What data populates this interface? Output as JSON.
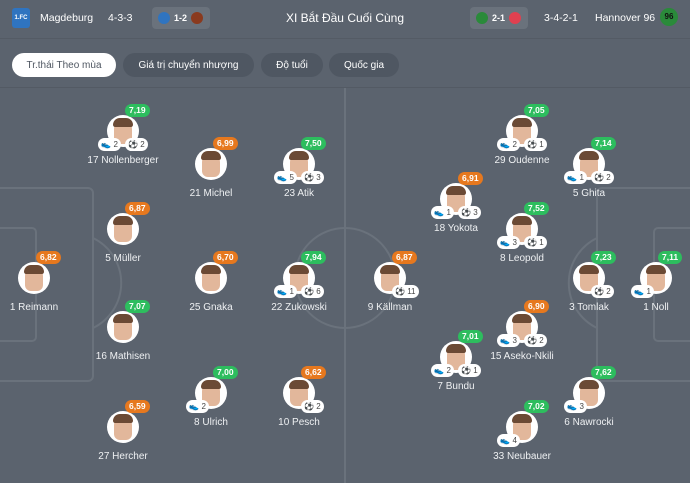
{
  "header": {
    "home_team": "Magdeburg",
    "home_formation": "4-3-3",
    "home_last_score": "1-2",
    "title": "XI Bắt Đầu Cuối Cùng",
    "away_last_score": "2-1",
    "away_formation": "3-4-2-1",
    "away_team": "Hannover 96",
    "home_crest_text": "1.FC",
    "away_crest_text": "96"
  },
  "tabs": [
    {
      "label": "Tr.thái Theo mùa",
      "active": true
    },
    {
      "label": "Giá trị chuyển nhượng"
    },
    {
      "label": "Độ tuổi"
    },
    {
      "label": "Quốc gia"
    }
  ],
  "colors": {
    "green": "#2dbd5e",
    "orange": "#e6781e",
    "background": "#5b636e"
  },
  "icons": {
    "assist": "boot-icon",
    "goal": "football-icon"
  },
  "players": [
    {
      "name": "17 Nollenberger",
      "rating": "7,19",
      "assists": "2",
      "goals": "2"
    },
    {
      "name": "21 Michel",
      "rating": "6,99"
    },
    {
      "name": "23 Atik",
      "rating": "7,50",
      "assists": "5",
      "goals": "3"
    },
    {
      "name": "5 Müller",
      "rating": "6,87"
    },
    {
      "name": "1 Reimann",
      "rating": "6,82"
    },
    {
      "name": "25 Gnaka",
      "rating": "6,70"
    },
    {
      "name": "22 Zukowski",
      "rating": "7,94",
      "assists": "1",
      "goals": "6"
    },
    {
      "name": "16 Mathisen",
      "rating": "7,07"
    },
    {
      "name": "8 Ulrich",
      "rating": "7,00",
      "assists": "2"
    },
    {
      "name": "10 Pesch",
      "rating": "6,62",
      "goals": "2"
    },
    {
      "name": "27 Hercher",
      "rating": "6,59"
    },
    {
      "name": "29 Oudenne",
      "rating": "7,05",
      "assists": "2",
      "goals": "1"
    },
    {
      "name": "5 Ghita",
      "rating": "7,14",
      "assists": "1",
      "goals": "2"
    },
    {
      "name": "18 Yokota",
      "rating": "6,91",
      "assists": "1",
      "goals": "3"
    },
    {
      "name": "8 Leopold",
      "rating": "7,52",
      "assists": "3",
      "goals": "1"
    },
    {
      "name": "9 Källman",
      "rating": "6,87",
      "goals": "11"
    },
    {
      "name": "3 Tomlak",
      "rating": "7,23",
      "goals": "2"
    },
    {
      "name": "1 Noll",
      "rating": "7,11",
      "assists": "1"
    },
    {
      "name": "15 Aseko-Nkili",
      "rating": "6,90",
      "assists": "3",
      "goals": "2"
    },
    {
      "name": "7 Bundu",
      "rating": "7,01",
      "assists": "2",
      "goals": "1"
    },
    {
      "name": "6 Nawrocki",
      "rating": "7,62",
      "assists": "3"
    },
    {
      "name": "33 Neubauer",
      "rating": "7,02",
      "assists": "4"
    }
  ]
}
